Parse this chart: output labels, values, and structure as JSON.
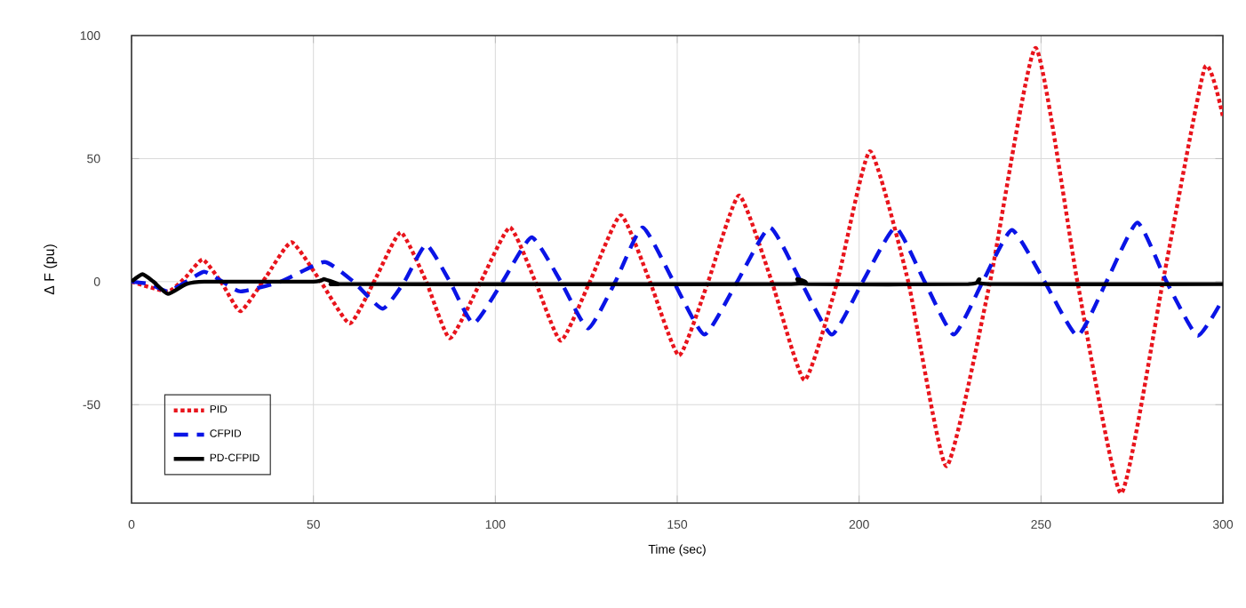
{
  "chart_data": {
    "type": "line",
    "xlabel": "Time (sec)",
    "ylabel": "Δ F (pu)",
    "xlim": [
      0,
      300
    ],
    "xticks": [
      0,
      50,
      100,
      150,
      200,
      250,
      300
    ],
    "ylim": [
      -90,
      100
    ],
    "yticks": [
      -50,
      0,
      50,
      100
    ],
    "grid": true,
    "legend": "bottom left",
    "series": [
      {
        "name": "PID",
        "color": "#e8141c",
        "line_style": "dotted",
        "x": [
          0,
          10,
          15,
          19.6,
          25,
          30,
          37,
          44,
          52,
          60,
          67,
          74,
          81,
          87.5,
          96,
          104,
          111,
          118,
          126,
          134.5,
          142.5,
          150.5,
          158.5,
          167,
          176,
          185,
          194,
          203,
          213.5,
          224,
          236,
          248.5,
          260,
          272,
          283.5,
          295,
          300
        ],
        "values": [
          0,
          -4,
          2,
          9,
          -1,
          -12,
          2,
          16,
          0,
          -17,
          1,
          20,
          0,
          -23,
          0,
          22,
          0,
          -24,
          0,
          27,
          0,
          -30,
          0,
          35,
          0,
          -40,
          0,
          53,
          0,
          -75,
          0,
          95,
          0,
          -86,
          0,
          87,
          67
        ]
      },
      {
        "name": "CFPID",
        "color": "#0a14e6",
        "line_style": "dashed",
        "x": [
          0,
          5,
          10,
          15,
          20,
          25,
          30,
          41,
          53,
          61,
          69,
          75,
          81,
          87.5,
          94,
          102,
          110,
          118,
          125.5,
          133,
          140.5,
          149,
          157.5,
          166.5,
          175.5,
          184,
          192.5,
          201,
          210,
          218,
          226,
          234,
          242,
          251,
          260,
          268,
          276.5,
          284.5,
          293,
          300
        ],
        "values": [
          0,
          -1,
          -4,
          0,
          4,
          0,
          -4,
          0,
          8,
          0,
          -11,
          0,
          15,
          0,
          -17,
          0,
          18,
          0,
          -19,
          0,
          22,
          0,
          -21.5,
          0,
          22,
          0,
          -21.5,
          0,
          22,
          0,
          -21.5,
          0,
          21,
          0,
          -22,
          0,
          24,
          0,
          -22,
          -7
        ]
      },
      {
        "name": "PD-CFPID",
        "color": "#000000",
        "line_style": "solid",
        "x": [
          0,
          3,
          6,
          10,
          15,
          20,
          50,
          53,
          57,
          60,
          180,
          183,
          186,
          230,
          233,
          236,
          300
        ],
        "values": [
          0,
          3,
          0,
          -5,
          -1,
          0,
          0,
          1,
          -1,
          -1,
          -1,
          1,
          -1,
          -1,
          1,
          -1,
          -1
        ]
      }
    ]
  }
}
